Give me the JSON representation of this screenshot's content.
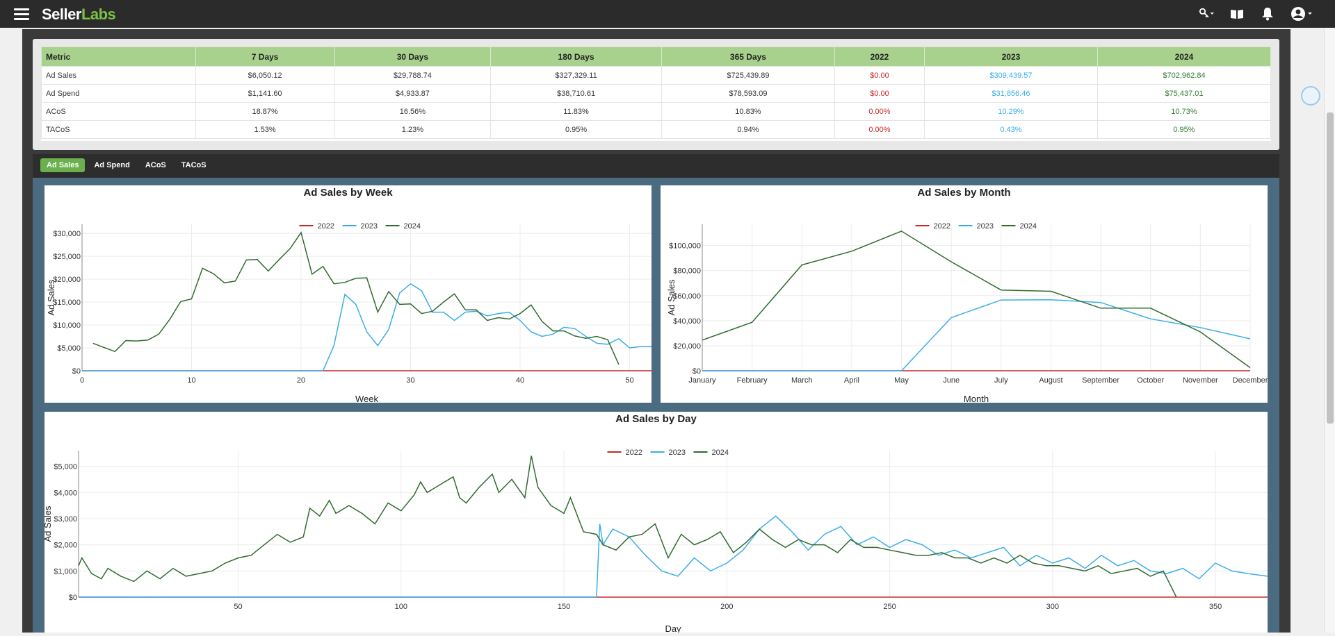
{
  "app": {
    "logo_main": "Seller",
    "logo_accent": "Labs"
  },
  "topbar_icons": [
    "menu-icon",
    "key-icon",
    "book-icon",
    "bell-icon",
    "user-icon"
  ],
  "colors": {
    "y2022": "#c62828",
    "y2023": "#3aaee8",
    "y2024": "#2e6b2e",
    "header_green": "#a9d18e",
    "accent": "#6ab04c"
  },
  "table": {
    "headers": [
      "Metric",
      "7 Days",
      "30 Days",
      "180 Days",
      "365 Days",
      "2022",
      "2023",
      "2024"
    ],
    "rows": [
      [
        "Ad Sales",
        "$6,050.12",
        "$29,788.74",
        "$327,329.11",
        "$725,439.89",
        "$0.00",
        "$309,439.57",
        "$702,962.84"
      ],
      [
        "Ad Spend",
        "$1,141.60",
        "$4,933.87",
        "$38,710.61",
        "$78,593.09",
        "$0.00",
        "$31,856.46",
        "$75,437.01"
      ],
      [
        "ACoS",
        "18.87%",
        "16.56%",
        "11.83%",
        "10.83%",
        "0.00%",
        "10.29%",
        "10.73%"
      ],
      [
        "TACoS",
        "1.53%",
        "1.23%",
        "0.95%",
        "0.94%",
        "0.00%",
        "0.43%",
        "0.95%"
      ]
    ]
  },
  "tabs": [
    "Ad Sales",
    "Ad Spend",
    "ACoS",
    "TACoS"
  ],
  "active_tab": 0,
  "chart_data": [
    {
      "id": "week",
      "type": "line",
      "title": "Ad Sales by Week",
      "xlabel": "Week",
      "ylabel": "Ad Sales",
      "xlim": [
        0,
        52
      ],
      "ylim": [
        0,
        32000
      ],
      "xticks": [
        0,
        10,
        20,
        30,
        40,
        50
      ],
      "yticks": [
        0,
        5000,
        10000,
        15000,
        20000,
        25000,
        30000
      ],
      "ytick_labels": [
        "$0",
        "$5,000",
        "$10,000",
        "$15,000",
        "$20,000",
        "$25,000",
        "$30,000"
      ],
      "legend": "top-center",
      "series": [
        {
          "name": "2022",
          "x": [
            0,
            52
          ],
          "y": [
            0,
            0
          ]
        },
        {
          "name": "2023",
          "x": [
            0,
            22,
            23,
            24,
            25,
            26,
            27,
            28,
            29,
            30,
            31,
            32,
            33,
            34,
            35,
            36,
            37,
            38,
            39,
            40,
            41,
            42,
            43,
            44,
            45,
            46,
            47,
            48,
            49,
            50,
            51,
            52
          ],
          "y": [
            0,
            0,
            5500,
            16700,
            14500,
            8500,
            5500,
            9000,
            17000,
            19000,
            17500,
            12800,
            12800,
            11000,
            12800,
            13000,
            12000,
            12500,
            12800,
            11000,
            8500,
            7500,
            8000,
            9500,
            9200,
            7500,
            6000,
            5800,
            7000,
            5000,
            5300,
            5300
          ]
        },
        {
          "name": "2024",
          "x": [
            1,
            2,
            3,
            4,
            5,
            6,
            7,
            8,
            9,
            10,
            11,
            12,
            13,
            14,
            15,
            16,
            17,
            18,
            19,
            20,
            21,
            22,
            23,
            24,
            25,
            26,
            27,
            28,
            29,
            30,
            31,
            32,
            33,
            34,
            35,
            36,
            37,
            38,
            39,
            40,
            41,
            42,
            43,
            44,
            45,
            46,
            47,
            48,
            49
          ],
          "y": [
            6000,
            5100,
            4200,
            6600,
            6500,
            6700,
            8000,
            11200,
            15100,
            15700,
            22400,
            21200,
            19200,
            19600,
            24200,
            24300,
            21800,
            24300,
            26700,
            30200,
            21100,
            22800,
            19000,
            19300,
            20200,
            20300,
            12800,
            17300,
            14500,
            14600,
            12500,
            13000,
            15000,
            16800,
            13300,
            13300,
            11000,
            11600,
            11300,
            12500,
            14400,
            10800,
            8700,
            8700,
            7600,
            7100,
            7500,
            6800,
            1400
          ]
        }
      ]
    },
    {
      "id": "month",
      "type": "line",
      "title": "Ad Sales by Month",
      "xlabel": "Month",
      "ylabel": "Ad Sales",
      "categories": [
        "January",
        "February",
        "March",
        "April",
        "May",
        "June",
        "July",
        "August",
        "September",
        "October",
        "November",
        "December"
      ],
      "ylim": [
        0,
        117000
      ],
      "yticks": [
        0,
        20000,
        40000,
        60000,
        80000,
        100000
      ],
      "ytick_labels": [
        "$0",
        "$20,000",
        "$40,000",
        "$60,000",
        "$80,000",
        "$100,000"
      ],
      "legend": "top-center",
      "series": [
        {
          "name": "2022",
          "values": [
            0,
            0,
            0,
            0,
            0,
            0,
            0,
            0,
            0,
            0,
            0,
            0
          ]
        },
        {
          "name": "2023",
          "values": [
            0,
            0,
            0,
            0,
            0,
            42500,
            56500,
            56700,
            54500,
            41500,
            34500,
            25500
          ]
        },
        {
          "name": "2024",
          "values": [
            24500,
            38700,
            84500,
            95500,
            111500,
            87000,
            64500,
            63500,
            50000,
            50000,
            31000,
            2500
          ]
        }
      ]
    },
    {
      "id": "day",
      "type": "line",
      "title": "Ad Sales by Day",
      "xlabel": "Day",
      "ylabel": "Ad Sales",
      "xlim": [
        1,
        366
      ],
      "ylim": [
        0,
        5600
      ],
      "xticks": [
        50,
        100,
        150,
        200,
        250,
        300,
        350
      ],
      "yticks": [
        0,
        1000,
        2000,
        3000,
        4000,
        5000
      ],
      "ytick_labels": [
        "$0",
        "$1,000",
        "$2,000",
        "$3,000",
        "$4,000",
        "$5,000"
      ],
      "legend": "top-center",
      "series": [
        {
          "name": "2022",
          "x": [
            1,
            366
          ],
          "y": [
            0,
            0
          ]
        },
        {
          "name": "2023",
          "x": [
            1,
            159,
            160,
            161,
            162,
            165,
            170,
            175,
            180,
            185,
            190,
            195,
            200,
            205,
            210,
            215,
            220,
            225,
            230,
            235,
            240,
            245,
            250,
            255,
            260,
            265,
            270,
            275,
            280,
            285,
            290,
            295,
            300,
            305,
            310,
            315,
            320,
            325,
            330,
            335,
            340,
            345,
            350,
            355,
            360,
            366
          ],
          "y": [
            0,
            0,
            0,
            2800,
            2000,
            2600,
            2300,
            1600,
            1000,
            800,
            1500,
            1000,
            1300,
            1800,
            2600,
            3100,
            2500,
            1800,
            2400,
            2700,
            2000,
            2300,
            1900,
            2200,
            2000,
            1600,
            1800,
            1500,
            1700,
            1900,
            1200,
            1600,
            1300,
            1500,
            1100,
            1600,
            1200,
            1400,
            1000,
            900,
            1100,
            700,
            1300,
            1000,
            900,
            800
          ]
        },
        {
          "name": "2024",
          "x": [
            1,
            2,
            5,
            8,
            10,
            14,
            18,
            22,
            26,
            30,
            34,
            38,
            42,
            46,
            50,
            54,
            58,
            62,
            66,
            70,
            72,
            75,
            78,
            80,
            84,
            88,
            92,
            96,
            100,
            104,
            106,
            108,
            112,
            116,
            118,
            120,
            124,
            128,
            130,
            134,
            138,
            140,
            142,
            146,
            150,
            152,
            156,
            160,
            162,
            166,
            170,
            174,
            178,
            182,
            186,
            190,
            194,
            198,
            202,
            206,
            210,
            214,
            218,
            222,
            226,
            230,
            234,
            238,
            242,
            246,
            250,
            254,
            258,
            262,
            266,
            270,
            274,
            278,
            282,
            286,
            290,
            294,
            298,
            302,
            306,
            310,
            314,
            318,
            322,
            326,
            330,
            334,
            336,
            338
          ],
          "y": [
            1200,
            1500,
            900,
            700,
            1100,
            800,
            600,
            1000,
            700,
            1100,
            800,
            900,
            1000,
            1300,
            1500,
            1600,
            2000,
            2400,
            2100,
            2300,
            3400,
            3100,
            3700,
            3200,
            3500,
            3200,
            2800,
            3600,
            3300,
            3900,
            4400,
            4000,
            4300,
            4600,
            3800,
            3600,
            4200,
            4700,
            4000,
            4500,
            3800,
            5400,
            4200,
            3500,
            3200,
            3800,
            2500,
            2400,
            2000,
            1800,
            2300,
            2400,
            2800,
            1500,
            2400,
            2000,
            2200,
            2500,
            1700,
            2100,
            2600,
            2200,
            1900,
            2200,
            2000,
            2000,
            1700,
            2200,
            1900,
            1900,
            1800,
            1700,
            1600,
            1600,
            1700,
            1500,
            1500,
            1300,
            1500,
            1300,
            1600,
            1300,
            1200,
            1200,
            1100,
            1000,
            1200,
            900,
            1000,
            1100,
            800,
            1000,
            500,
            0
          ]
        }
      ]
    }
  ]
}
